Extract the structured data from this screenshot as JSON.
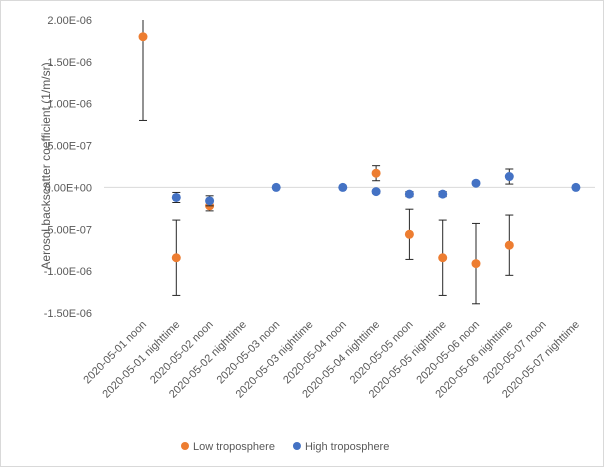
{
  "chart_data": {
    "type": "scatter",
    "y_label": "Aerosol backscatter coefficient (1/m/sr)",
    "categories": [
      "2020-05-01 noon",
      "2020-05-01 nighttime",
      "2020-05-02 noon",
      "2020-05-02 nighttime",
      "2020-05-03 noon",
      "2020-05-03 nighttime",
      "2020-05-04 noon",
      "2020-05-04 nighttime",
      "2020-05-05 noon",
      "2020-05-05 nighttime",
      "2020-05-06 noon",
      "2020-05-06 nighttime",
      "2020-05-07 noon",
      "2020-05-07 nighttime"
    ],
    "series": [
      {
        "name": "Low troposphere",
        "color": "#ed7d31",
        "values": [
          1.8e-06,
          -8.4e-07,
          -2.2e-07,
          null,
          null,
          null,
          null,
          1.7e-07,
          -5.6e-07,
          -8.4e-07,
          -9.1e-07,
          -6.9e-07,
          null,
          null
        ],
        "errors": [
          1e-06,
          4.5e-07,
          6e-08,
          null,
          null,
          null,
          null,
          9e-08,
          3e-07,
          4.5e-07,
          4.8e-07,
          3.6e-07,
          null,
          null
        ]
      },
      {
        "name": "High troposphere",
        "color": "#4472c4",
        "values": [
          null,
          -1.2e-07,
          -1.6e-07,
          null,
          0,
          null,
          0,
          -5e-08,
          -8e-08,
          -8e-08,
          5e-08,
          1.3e-07,
          null,
          0
        ],
        "errors": [
          null,
          6e-08,
          6e-08,
          null,
          0,
          null,
          0,
          2e-08,
          3e-08,
          3e-08,
          2e-08,
          9e-08,
          null,
          0
        ]
      }
    ],
    "ylim": [
      -1.5e-06,
      2e-06
    ],
    "yticks": [
      {
        "value": -1.5e-06,
        "label": "-1.50E-06"
      },
      {
        "value": -1e-06,
        "label": "-1.00E-06"
      },
      {
        "value": -5e-07,
        "label": "-5.00E-07"
      },
      {
        "value": 0,
        "label": "0.00E+00"
      },
      {
        "value": 5e-07,
        "label": "5.00E-07"
      },
      {
        "value": 1e-06,
        "label": "1.00E-06"
      },
      {
        "value": 1.5e-06,
        "label": "1.50E-06"
      },
      {
        "value": 2e-06,
        "label": "2.00E-06"
      }
    ],
    "legend": "bottom"
  }
}
